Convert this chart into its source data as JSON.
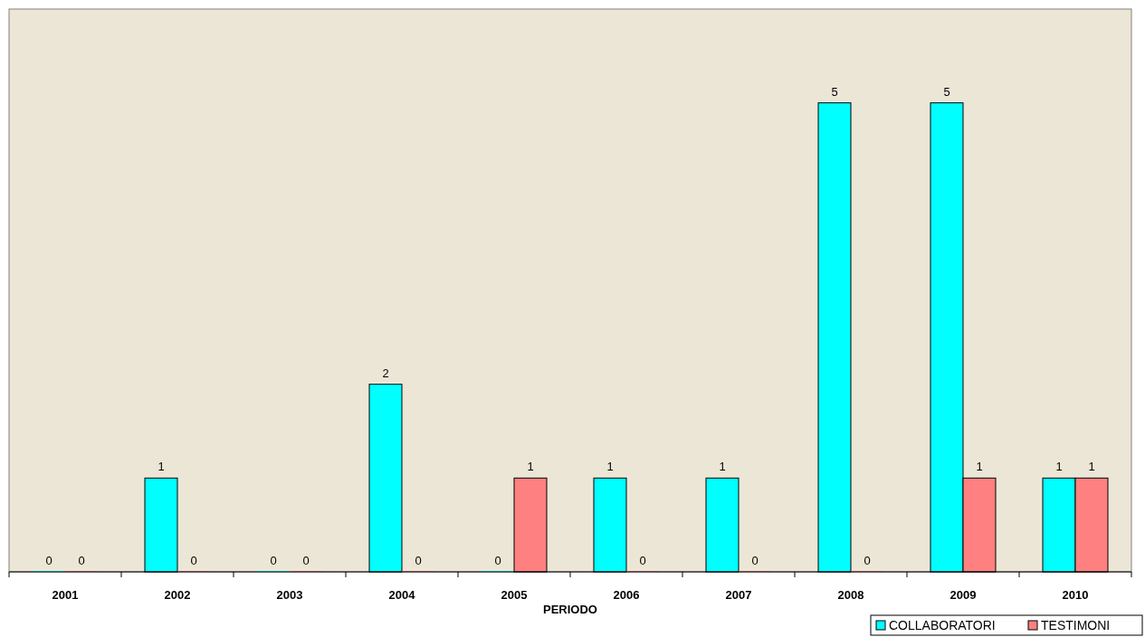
{
  "chart_data": {
    "type": "bar",
    "xlabel": "PERIODO",
    "categories": [
      "2001",
      "2002",
      "2003",
      "2004",
      "2005",
      "2006",
      "2007",
      "2008",
      "2009",
      "2010"
    ],
    "series": [
      {
        "name": "COLLABORATORI",
        "color": "#00ffff",
        "values": [
          0,
          1,
          0,
          2,
          0,
          1,
          1,
          5,
          5,
          1
        ]
      },
      {
        "name": "TESTIMONI",
        "color": "#ff8080",
        "values": [
          0,
          0,
          0,
          0,
          1,
          0,
          0,
          0,
          1,
          1
        ]
      }
    ],
    "ylim": [
      0,
      6
    ],
    "tick_labels": "x",
    "data_labels": true,
    "legend": "bottom right",
    "grid": false
  }
}
